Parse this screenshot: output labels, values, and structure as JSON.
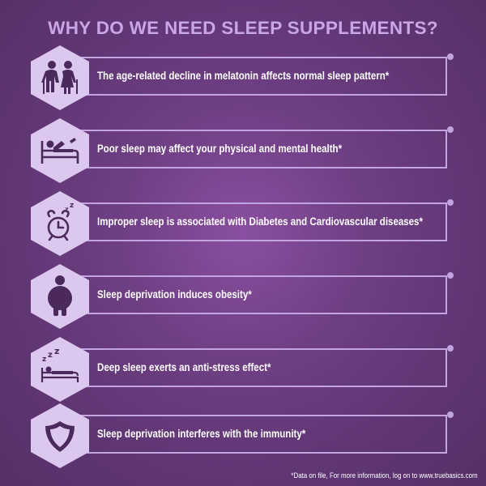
{
  "title": "WHY DO WE NEED SLEEP SUPPLEMENTS?",
  "colors": {
    "background": "#6f3f84",
    "accent": "#c3a3e0",
    "hexagon": "#dcc8ee",
    "icon": "#4a2a5c",
    "text": "#ffffff"
  },
  "items": [
    {
      "icon": "elderly-couple-icon",
      "text": "The age-related decline in melatonin affects normal sleep pattern*"
    },
    {
      "icon": "person-in-bed-icon",
      "text": "Poor sleep may affect your physical and mental health*"
    },
    {
      "icon": "alarm-clock-icon",
      "text": "Improper sleep is associated with Diabetes and Cardiovascular diseases*"
    },
    {
      "icon": "obese-person-icon",
      "text": "Sleep deprivation induces obesity*"
    },
    {
      "icon": "sleeping-zzz-icon",
      "text": "Deep sleep exerts an anti-stress effect*"
    },
    {
      "icon": "shield-icon",
      "text": "Sleep deprivation interferes with the immunity*"
    }
  ],
  "footnote": "*Data on file, For more information, log on to www.truebasics.com"
}
